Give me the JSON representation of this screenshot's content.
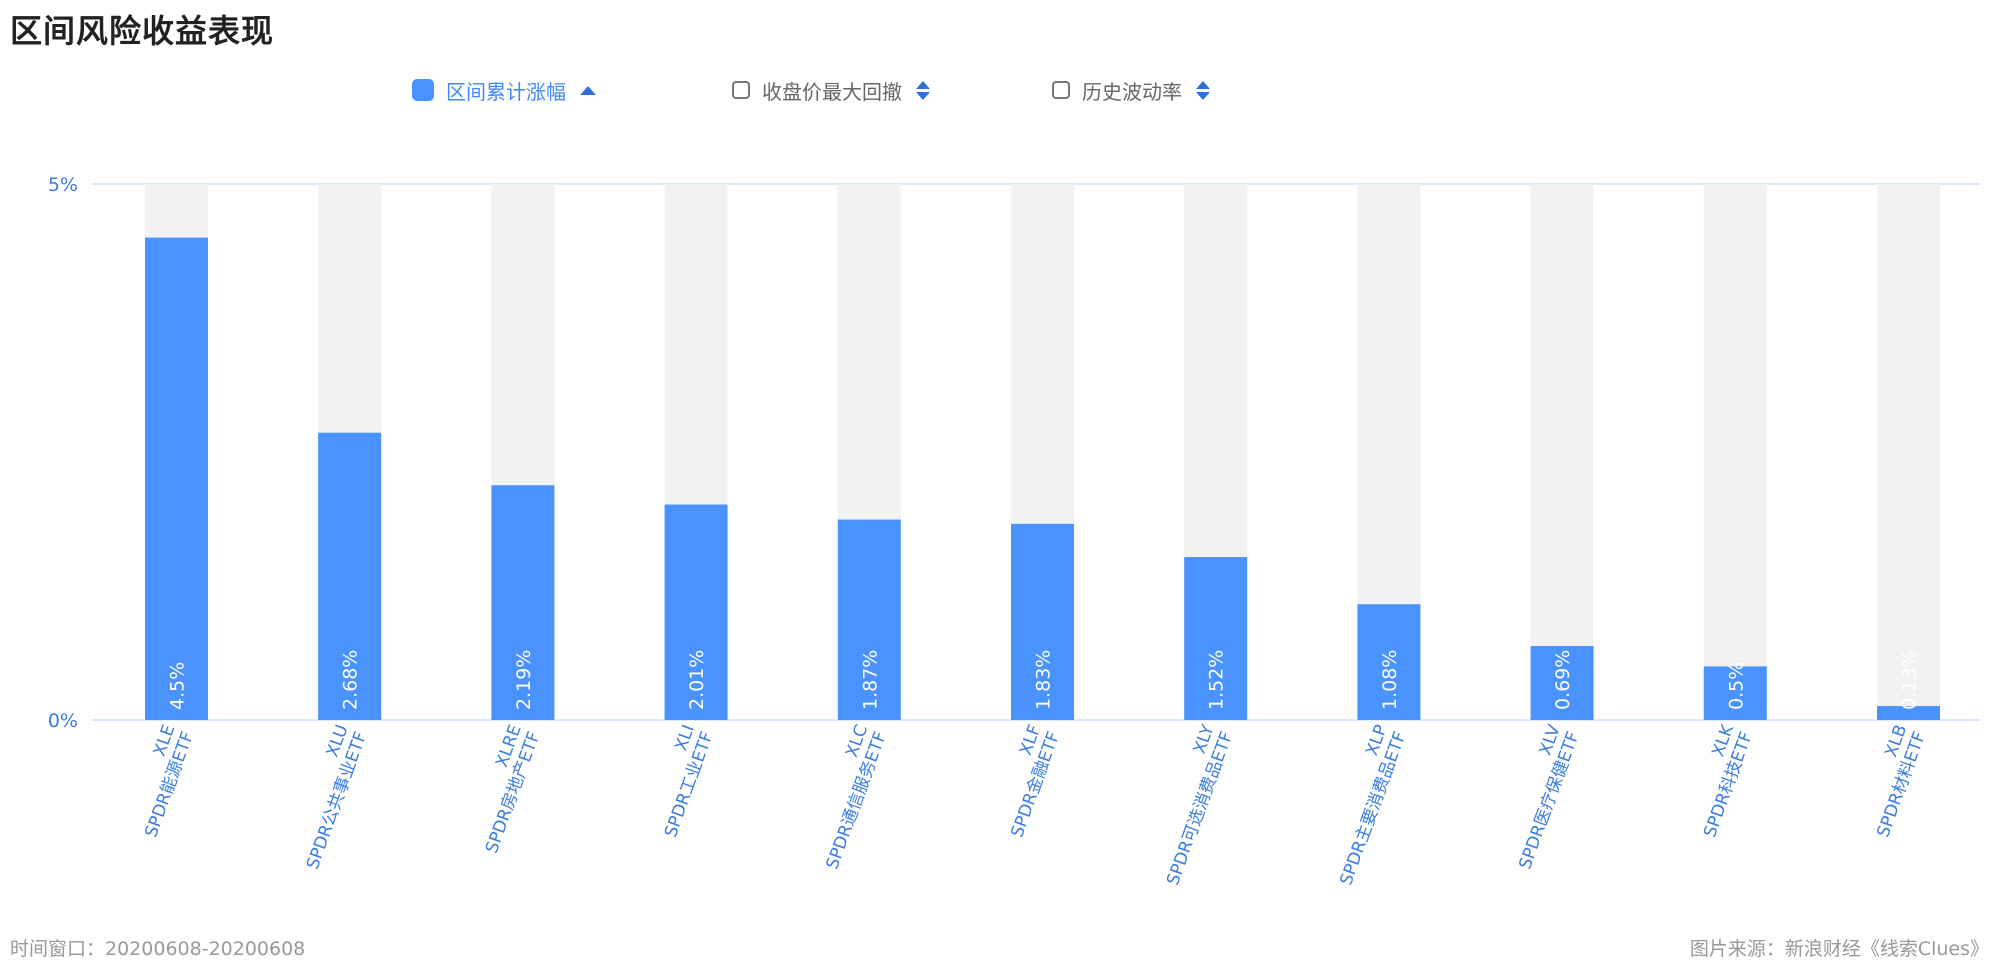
{
  "title": "区间风险收益表现",
  "tabs": [
    {
      "label": "区间累计涨幅",
      "active": true,
      "sort": "asc-single"
    },
    {
      "label": "收盘价最大回撤",
      "active": false,
      "sort": "both"
    },
    {
      "label": "历史波动率",
      "active": false,
      "sort": "both"
    }
  ],
  "colors": {
    "bar": "#4a93ff",
    "track": "#f2f2f2",
    "axis_text": "#3a7de0",
    "gridline": "#cfe3ff",
    "label_text": "#ffffff"
  },
  "chart_data": {
    "type": "bar",
    "title": "区间风险收益表现",
    "ylim": [
      0,
      5
    ],
    "ytick_labels": [
      "5%",
      "0%"
    ],
    "yticks": [
      5,
      0
    ],
    "categories": [
      {
        "code": "XLE",
        "name": "SPDR能源ETF"
      },
      {
        "code": "XLU",
        "name": "SPDR公共事业ETF"
      },
      {
        "code": "XLRE",
        "name": "SPDR房地产ETF"
      },
      {
        "code": "XLI",
        "name": "SPDR工业ETF"
      },
      {
        "code": "XLC",
        "name": "SPDR通信服务ETF"
      },
      {
        "code": "XLF",
        "name": "SPDR金融ETF"
      },
      {
        "code": "XLY",
        "name": "SPDR可选消费品ETF"
      },
      {
        "code": "XLP",
        "name": "SPDR主要消费品ETF"
      },
      {
        "code": "XLV",
        "name": "SPDR医疗保健ETF"
      },
      {
        "code": "XLK",
        "name": "SPDR科技ETF"
      },
      {
        "code": "XLB",
        "name": "SPDR材料ETF"
      }
    ],
    "values": [
      4.5,
      2.68,
      2.19,
      2.01,
      1.87,
      1.83,
      1.52,
      1.08,
      0.69,
      0.5,
      0.13
    ],
    "value_labels": [
      "4.5%",
      "2.68%",
      "2.19%",
      "2.01%",
      "1.87%",
      "1.83%",
      "1.52%",
      "1.08%",
      "0.69%",
      "0.5%",
      "0.13%"
    ]
  },
  "footer": {
    "time_window": "时间窗口：20200608-20200608",
    "source": "图片来源：新浪财经《线索Clues》"
  }
}
